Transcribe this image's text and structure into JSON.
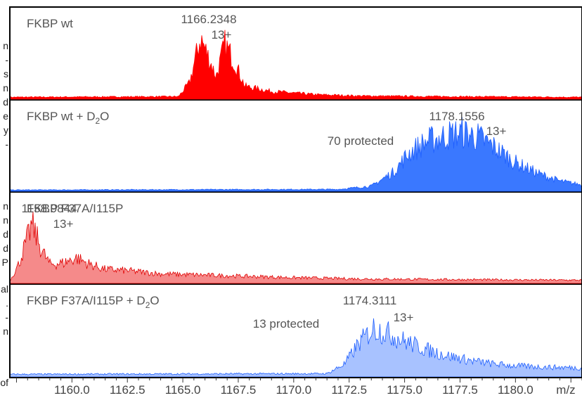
{
  "page_fragments": {
    "left_edge": [
      "n",
      "-",
      "s",
      "n",
      "d",
      "e",
      "y",
      "-",
      "n",
      "n",
      "d",
      "d",
      "P",
      "al",
      ".",
      "-",
      "n",
      "of"
    ]
  },
  "chart_data": {
    "type": "line",
    "x_axis": {
      "range": [
        1157.2,
        1183.0
      ],
      "ticks": [
        1160.0,
        1162.5,
        1165.0,
        1167.5,
        1170.0,
        1172.5,
        1175.0,
        1177.5,
        1180.0
      ],
      "tick_labels": [
        "1160.0",
        "1162.5",
        "1165.0",
        "1167.5",
        "1170.0",
        "1172.5",
        "1175.0",
        "1177.5",
        "1180.0"
      ],
      "unit_label": "m/z"
    },
    "panels": [
      {
        "label": "FKBP wt",
        "label_sub": "",
        "label_suffix": "",
        "color": "#ff0000",
        "fill": "#ff0000",
        "fill_opacity": 1,
        "peak_value": "1166.2348",
        "charge": "13+",
        "protected": "",
        "envelope": [
          [
            1157.2,
            0.03
          ],
          [
            1164.8,
            0.04
          ],
          [
            1165.3,
            0.25
          ],
          [
            1165.8,
            0.95
          ],
          [
            1166.1,
            0.7
          ],
          [
            1166.5,
            0.35
          ],
          [
            1166.9,
            0.85
          ],
          [
            1167.3,
            0.6
          ],
          [
            1167.8,
            0.2
          ],
          [
            1169.0,
            0.12
          ],
          [
            1171.0,
            0.07
          ],
          [
            1173.0,
            0.05
          ],
          [
            1177.0,
            0.04
          ],
          [
            1183.0,
            0.03
          ]
        ]
      },
      {
        "label": "FKBP wt + D",
        "label_sub": "2",
        "label_suffix": "O",
        "color": "#1f5fff",
        "fill": "#3a78ff",
        "fill_opacity": 1,
        "peak_value": "1178.1556",
        "charge": "13+",
        "protected": "70 protected",
        "envelope": [
          [
            1157.2,
            0.02
          ],
          [
            1172.0,
            0.03
          ],
          [
            1173.5,
            0.08
          ],
          [
            1174.5,
            0.3
          ],
          [
            1175.2,
            0.6
          ],
          [
            1176.0,
            0.78
          ],
          [
            1177.0,
            0.88
          ],
          [
            1177.6,
            0.92
          ],
          [
            1178.3,
            0.85
          ],
          [
            1179.0,
            0.7
          ],
          [
            1180.0,
            0.45
          ],
          [
            1181.0,
            0.28
          ],
          [
            1182.0,
            0.16
          ],
          [
            1183.0,
            0.1
          ]
        ]
      },
      {
        "label": "FKBP F37A/I115P",
        "label_sub": "",
        "label_suffix": "",
        "color": "#e00000",
        "fill": "#f58a8a",
        "fill_opacity": 1,
        "peak_value": "1158.9844",
        "charge": "13+",
        "protected": "",
        "envelope": [
          [
            1157.2,
            0.04
          ],
          [
            1157.6,
            0.3
          ],
          [
            1158.2,
            0.92
          ],
          [
            1158.6,
            0.55
          ],
          [
            1159.0,
            0.3
          ],
          [
            1159.6,
            0.32
          ],
          [
            1160.2,
            0.4
          ],
          [
            1160.8,
            0.3
          ],
          [
            1161.5,
            0.22
          ],
          [
            1162.5,
            0.2
          ],
          [
            1164.0,
            0.15
          ],
          [
            1166.0,
            0.13
          ],
          [
            1168.0,
            0.11
          ],
          [
            1170.0,
            0.09
          ],
          [
            1173.0,
            0.07
          ],
          [
            1177.0,
            0.06
          ],
          [
            1183.0,
            0.05
          ]
        ]
      },
      {
        "label": "FKBP F37A/I115P + D",
        "label_sub": "2",
        "label_suffix": "O",
        "color": "#1f5fff",
        "fill": "#a8c2ff",
        "fill_opacity": 1,
        "peak_value": "1174.3111",
        "charge": "13+",
        "protected": "13 protected",
        "envelope": [
          [
            1157.2,
            0.04
          ],
          [
            1171.5,
            0.05
          ],
          [
            1172.3,
            0.2
          ],
          [
            1172.9,
            0.5
          ],
          [
            1173.6,
            0.75
          ],
          [
            1174.2,
            0.68
          ],
          [
            1175.0,
            0.55
          ],
          [
            1176.0,
            0.42
          ],
          [
            1177.0,
            0.32
          ],
          [
            1178.0,
            0.25
          ],
          [
            1179.0,
            0.2
          ],
          [
            1180.0,
            0.17
          ],
          [
            1181.5,
            0.15
          ],
          [
            1183.0,
            0.14
          ]
        ]
      }
    ]
  }
}
